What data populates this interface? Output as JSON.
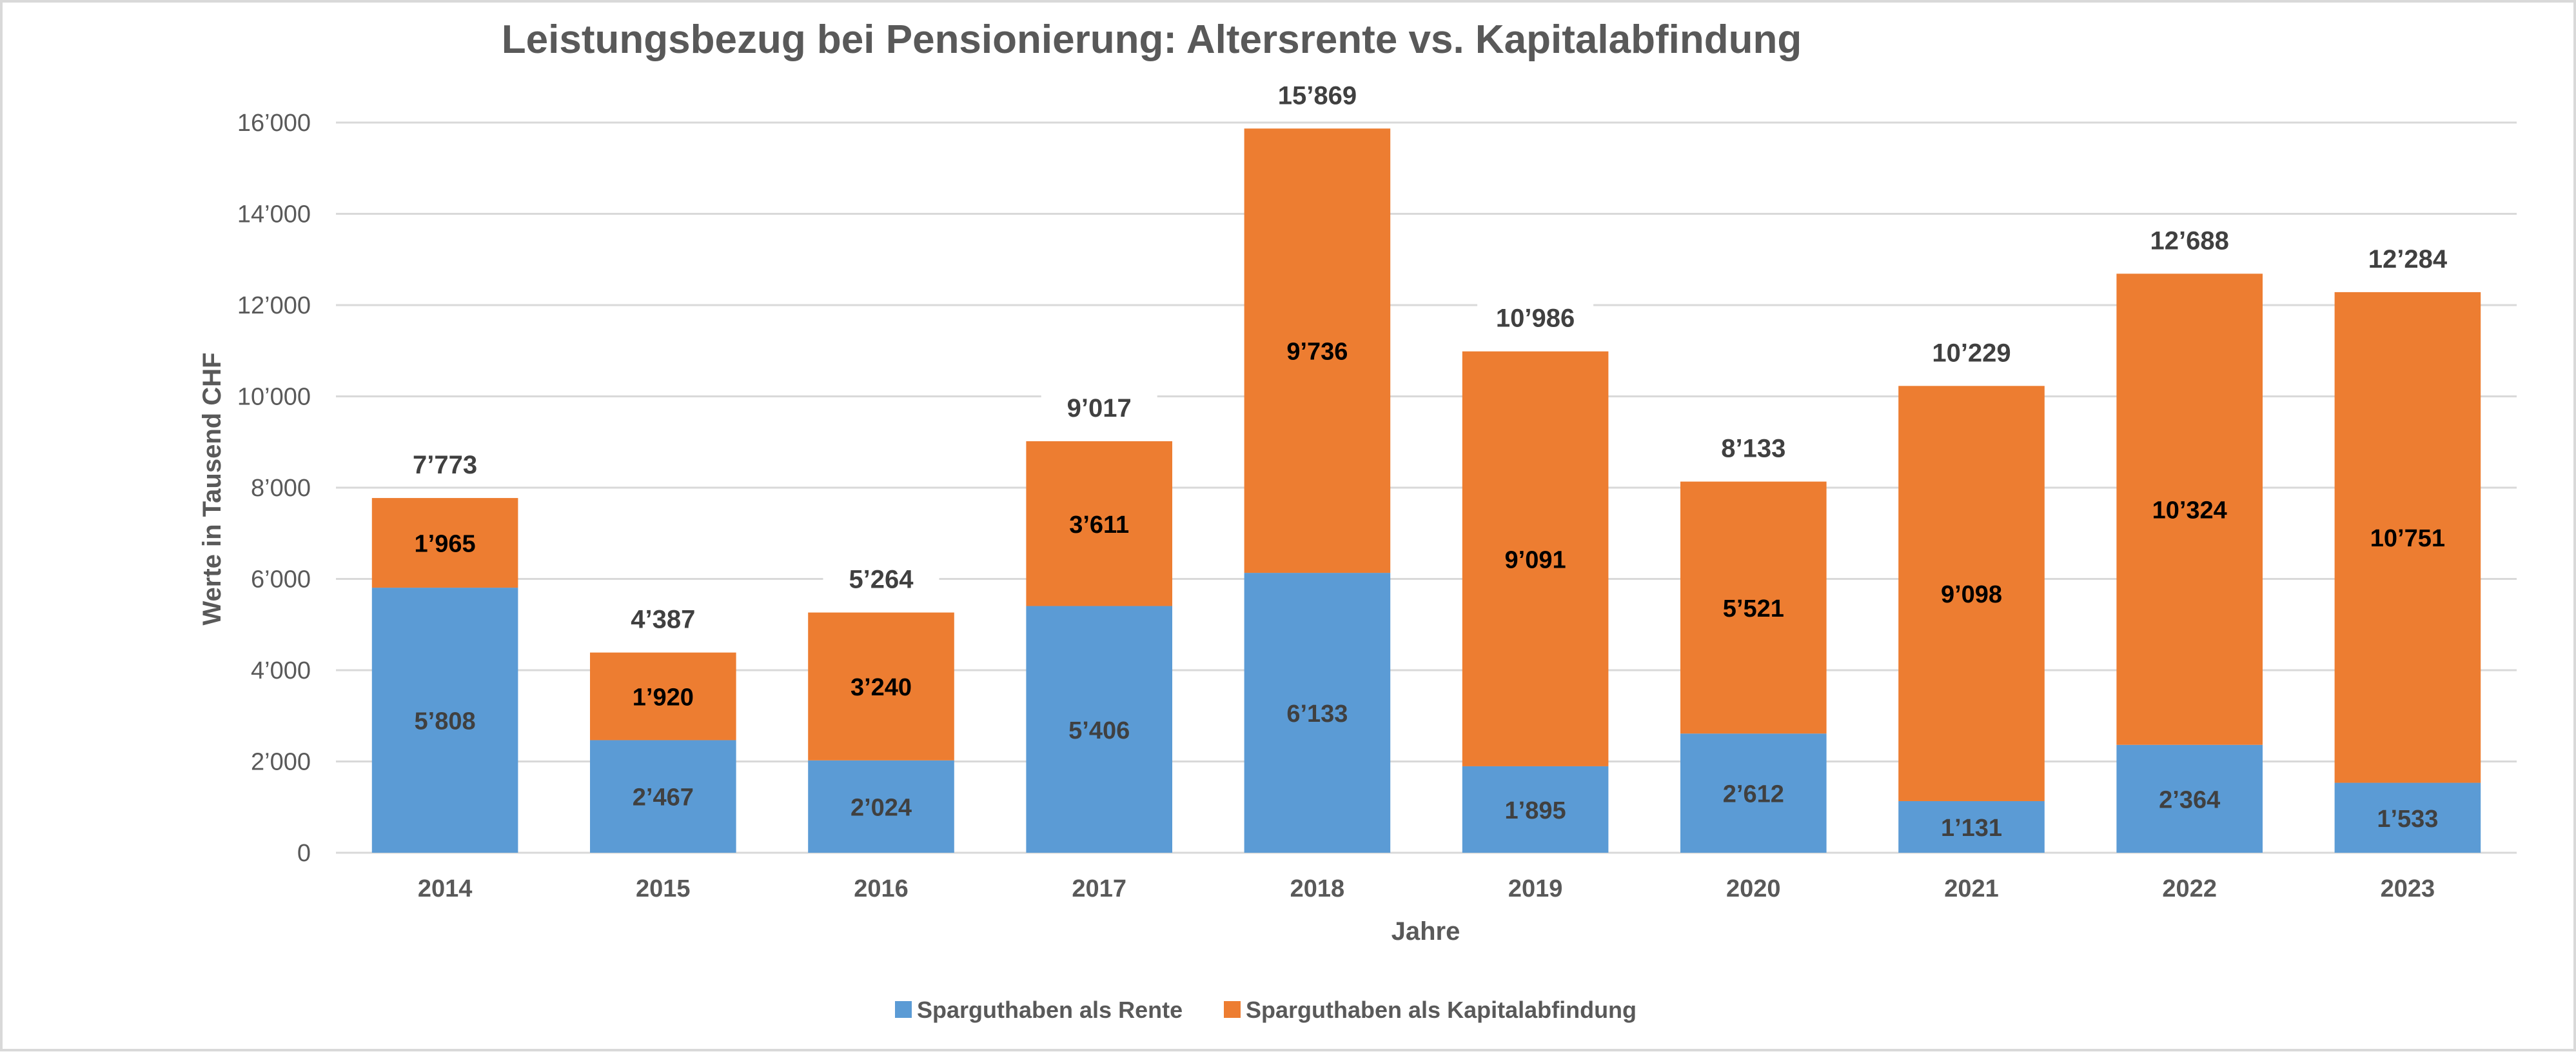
{
  "chart_data": {
    "type": "bar",
    "stacked": true,
    "title": "Leistungsbezug bei Pensionierung: Altersrente vs. Kapitalabfindung",
    "xlabel": "Jahre",
    "ylabel": "Werte in Tausend CHF",
    "ylim": [
      0,
      16000
    ],
    "yticks": [
      0,
      2000,
      4000,
      6000,
      8000,
      10000,
      12000,
      14000,
      16000
    ],
    "ytick_labels": [
      "0",
      "2’000",
      "4’000",
      "6’000",
      "8’000",
      "10’000",
      "12’000",
      "14’000",
      "16’000"
    ],
    "grid": true,
    "legend_position": "bottom",
    "categories": [
      "2014",
      "2015",
      "2016",
      "2017",
      "2018",
      "2019",
      "2020",
      "2021",
      "2022",
      "2023"
    ],
    "series": [
      {
        "name": "Sparguthaben als Rente",
        "color": "#5B9BD5",
        "values": [
          5808,
          2467,
          2024,
          5406,
          6133,
          1895,
          2612,
          1131,
          2364,
          1533
        ],
        "labels": [
          "5’808",
          "2’467",
          "2’024",
          "5’406",
          "6’133",
          "1’895",
          "2’612",
          "1’131",
          "2’364",
          "1’533"
        ]
      },
      {
        "name": "Sparguthaben als Kapitalabfindung",
        "color": "#ED7D31",
        "values": [
          1965,
          1920,
          3240,
          3611,
          9736,
          9091,
          5521,
          9098,
          10324,
          10751
        ],
        "labels": [
          "1’965",
          "1’920",
          "3’240",
          "3’611",
          "9’736",
          "9’091",
          "5’521",
          "9’098",
          "10’324",
          "10’751"
        ]
      }
    ],
    "totals": [
      7773,
      4387,
      5264,
      9017,
      15869,
      10986,
      8133,
      10229,
      12688,
      12284
    ],
    "total_labels": [
      "7’773",
      "4’387",
      "5’264",
      "9’017",
      "15’869",
      "10’986",
      "8’133",
      "10’229",
      "12’688",
      "12’284"
    ]
  }
}
